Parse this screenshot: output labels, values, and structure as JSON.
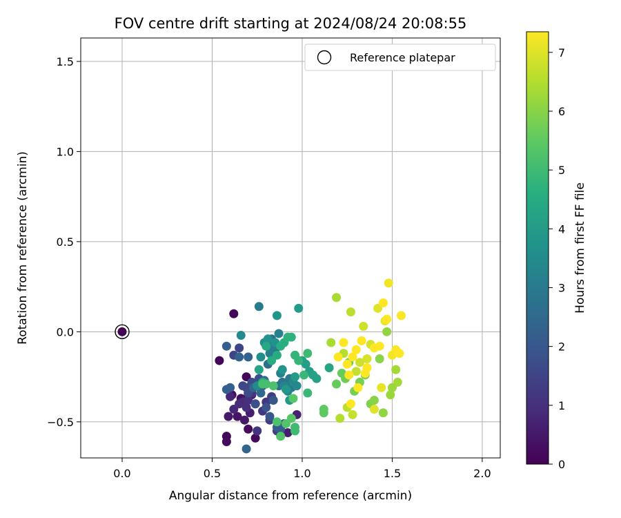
{
  "chart_data": {
    "type": "scatter",
    "title": "FOV centre drift starting at 2024/08/24 20:08:55",
    "xlabel": "Angular distance from reference (arcmin)",
    "ylabel": "Rotation from reference (arcmin)",
    "xlim": [
      -0.23,
      2.1
    ],
    "ylim": [
      -0.7,
      1.63
    ],
    "xticks": [
      0.0,
      0.5,
      1.0,
      1.5,
      2.0
    ],
    "xtick_labels": [
      "0.0",
      "0.5",
      "1.0",
      "1.5",
      "2.0"
    ],
    "yticks": [
      -0.5,
      0.0,
      0.5,
      1.0,
      1.5
    ],
    "ytick_labels": [
      "−0.5",
      "0.0",
      "0.5",
      "1.0",
      "1.5"
    ],
    "grid": true,
    "legend": {
      "placement": "top-right",
      "entries": [
        "Reference platepar"
      ]
    },
    "reference_point": {
      "x": 0.0,
      "y": 0.0,
      "value": 0.0
    },
    "colorbar": {
      "label": "Hours from first FF file",
      "colormap": "viridis",
      "range": [
        0,
        7.35
      ],
      "ticks": [
        0,
        1,
        2,
        3,
        4,
        5,
        6,
        7
      ],
      "tick_labels": [
        "0",
        "1",
        "2",
        "3",
        "4",
        "5",
        "6",
        "7"
      ]
    },
    "points": [
      [
        0.54,
        -0.16,
        0.1
      ],
      [
        0.62,
        0.1,
        0.1
      ],
      [
        0.69,
        -0.25,
        0.1
      ],
      [
        0.58,
        -0.58,
        0.1
      ],
      [
        0.58,
        -0.61,
        0.2
      ],
      [
        0.7,
        -0.54,
        0.2
      ],
      [
        0.74,
        -0.59,
        0.2
      ],
      [
        0.61,
        -0.35,
        0.3
      ],
      [
        0.66,
        -0.37,
        0.3
      ],
      [
        0.69,
        -0.37,
        0.4
      ],
      [
        0.64,
        -0.47,
        0.4
      ],
      [
        0.59,
        -0.47,
        0.5
      ],
      [
        0.68,
        -0.49,
        0.5
      ],
      [
        0.71,
        -0.45,
        0.6
      ],
      [
        0.72,
        -0.35,
        0.6
      ],
      [
        0.92,
        -0.56,
        0.6
      ],
      [
        0.97,
        -0.46,
        0.7
      ],
      [
        0.6,
        -0.36,
        0.8
      ],
      [
        0.62,
        -0.43,
        0.8
      ],
      [
        0.65,
        -0.4,
        0.9
      ],
      [
        0.67,
        -0.39,
        0.9
      ],
      [
        0.69,
        -0.42,
        1.0
      ],
      [
        0.7,
        -0.38,
        1.0
      ],
      [
        0.72,
        -0.34,
        1.1
      ],
      [
        0.74,
        -0.4,
        1.1
      ],
      [
        0.75,
        -0.55,
        1.1
      ],
      [
        0.78,
        -0.44,
        1.2
      ],
      [
        0.8,
        -0.39,
        1.2
      ],
      [
        0.82,
        -0.49,
        1.3
      ],
      [
        0.83,
        -0.36,
        1.3
      ],
      [
        0.86,
        -0.55,
        1.3
      ],
      [
        0.88,
        -0.57,
        1.4
      ],
      [
        0.9,
        -0.51,
        1.4
      ],
      [
        0.62,
        -0.13,
        1.5
      ],
      [
        0.65,
        -0.09,
        1.5
      ],
      [
        0.67,
        -0.3,
        1.6
      ],
      [
        0.69,
        -0.31,
        1.6
      ],
      [
        0.7,
        -0.34,
        1.7
      ],
      [
        0.72,
        -0.28,
        1.7
      ],
      [
        0.74,
        -0.4,
        1.8
      ],
      [
        0.76,
        -0.26,
        1.8
      ],
      [
        0.78,
        -0.3,
        1.9
      ],
      [
        0.8,
        -0.42,
        1.9
      ],
      [
        0.82,
        -0.47,
        2.0
      ],
      [
        0.84,
        -0.38,
        2.0
      ],
      [
        0.86,
        -0.53,
        2.1
      ],
      [
        0.88,
        -0.54,
        2.1
      ],
      [
        0.58,
        -0.08,
        2.2
      ],
      [
        0.58,
        -0.32,
        2.2
      ],
      [
        0.6,
        -0.31,
        2.2
      ],
      [
        0.65,
        -0.14,
        2.3
      ],
      [
        0.7,
        -0.14,
        2.3
      ],
      [
        0.69,
        -0.65,
        2.4
      ],
      [
        0.73,
        -0.31,
        2.4
      ],
      [
        0.77,
        -0.34,
        2.5
      ],
      [
        0.79,
        -0.27,
        2.5
      ],
      [
        0.81,
        -0.18,
        2.6
      ],
      [
        0.83,
        -0.04,
        2.6
      ],
      [
        0.85,
        -0.1,
        2.7
      ],
      [
        0.87,
        -0.3,
        2.7
      ],
      [
        0.89,
        -0.28,
        2.8
      ],
      [
        0.91,
        -0.3,
        2.8
      ],
      [
        0.93,
        -0.26,
        2.9
      ],
      [
        0.94,
        -0.31,
        2.9
      ],
      [
        0.76,
        0.14,
        3.0
      ],
      [
        0.8,
        -0.06,
        3.0
      ],
      [
        0.82,
        -0.12,
        3.1
      ],
      [
        0.84,
        -0.08,
        3.1
      ],
      [
        0.87,
        -0.01,
        3.2
      ],
      [
        0.88,
        -0.23,
        3.2
      ],
      [
        0.9,
        -0.3,
        3.3
      ],
      [
        0.92,
        -0.33,
        3.3
      ],
      [
        0.95,
        -0.28,
        3.4
      ],
      [
        0.97,
        -0.3,
        3.4
      ],
      [
        0.66,
        -0.02,
        3.5
      ],
      [
        0.75,
        -0.3,
        3.5
      ],
      [
        0.77,
        -0.14,
        3.6
      ],
      [
        0.79,
        -0.06,
        3.6
      ],
      [
        0.81,
        -0.04,
        3.7
      ],
      [
        0.85,
        -0.06,
        3.7
      ],
      [
        0.86,
        0.09,
        3.8
      ],
      [
        0.89,
        -0.21,
        3.8
      ],
      [
        0.91,
        -0.32,
        3.9
      ],
      [
        0.93,
        -0.38,
        3.9
      ],
      [
        0.96,
        -0.25,
        4.0
      ],
      [
        0.98,
        0.13,
        4.0
      ],
      [
        1.0,
        -0.16,
        4.1
      ],
      [
        1.02,
        -0.18,
        4.1
      ],
      [
        1.04,
        -0.22,
        4.1
      ],
      [
        1.06,
        -0.24,
        4.2
      ],
      [
        1.08,
        -0.26,
        4.2
      ],
      [
        1.15,
        -0.2,
        4.3
      ],
      [
        0.76,
        -0.21,
        4.3
      ],
      [
        0.78,
        -0.28,
        4.4
      ],
      [
        0.8,
        -0.08,
        4.4
      ],
      [
        0.83,
        -0.16,
        4.5
      ],
      [
        0.86,
        -0.13,
        4.5
      ],
      [
        0.88,
        -0.08,
        4.6
      ],
      [
        0.9,
        -0.06,
        4.6
      ],
      [
        0.92,
        -0.03,
        4.7
      ],
      [
        0.94,
        -0.03,
        4.7
      ],
      [
        0.96,
        -0.13,
        4.8
      ],
      [
        0.98,
        -0.16,
        4.8
      ],
      [
        1.01,
        -0.24,
        4.9
      ],
      [
        1.03,
        -0.34,
        4.9
      ],
      [
        1.03,
        -0.12,
        5.0
      ],
      [
        0.96,
        -0.53,
        5.0
      ],
      [
        0.96,
        -0.55,
        5.0
      ],
      [
        0.78,
        -0.29,
        5.1
      ],
      [
        0.8,
        -0.29,
        5.1
      ],
      [
        0.84,
        -0.3,
        5.2
      ],
      [
        0.86,
        -0.5,
        5.2
      ],
      [
        0.88,
        -0.58,
        5.3
      ],
      [
        0.91,
        -0.51,
        5.3
      ],
      [
        0.94,
        -0.48,
        5.4
      ],
      [
        0.95,
        -0.37,
        5.4
      ],
      [
        1.12,
        -0.43,
        5.5
      ],
      [
        1.12,
        -0.45,
        5.5
      ],
      [
        1.19,
        -0.29,
        5.6
      ],
      [
        1.22,
        -0.23,
        5.6
      ],
      [
        1.24,
        -0.26,
        5.7
      ],
      [
        1.26,
        -0.17,
        5.7
      ],
      [
        1.29,
        -0.33,
        5.8
      ],
      [
        1.32,
        -0.28,
        5.8
      ],
      [
        1.35,
        -0.24,
        5.9
      ],
      [
        1.38,
        -0.4,
        5.9
      ],
      [
        1.4,
        -0.38,
        6.0
      ],
      [
        1.43,
        -0.15,
        6.0
      ],
      [
        1.45,
        -0.45,
        6.1
      ],
      [
        1.47,
        0.0,
        6.1
      ],
      [
        1.49,
        -0.35,
        6.2
      ],
      [
        1.5,
        -0.31,
        6.2
      ],
      [
        1.52,
        -0.21,
        6.3
      ],
      [
        1.53,
        -0.28,
        6.3
      ],
      [
        1.16,
        -0.06,
        6.4
      ],
      [
        1.19,
        0.19,
        6.4
      ],
      [
        1.21,
        -0.48,
        6.5
      ],
      [
        1.23,
        -0.12,
        6.5
      ],
      [
        1.25,
        -0.42,
        6.6
      ],
      [
        1.27,
        0.11,
        6.6
      ],
      [
        1.28,
        -0.46,
        6.7
      ],
      [
        1.3,
        -0.22,
        6.7
      ],
      [
        1.32,
        -0.17,
        6.8
      ],
      [
        1.34,
        0.03,
        6.8
      ],
      [
        1.36,
        -0.15,
        6.9
      ],
      [
        1.38,
        -0.07,
        6.9
      ],
      [
        1.4,
        -0.43,
        7.0
      ],
      [
        1.42,
        0.13,
        7.0
      ],
      [
        1.44,
        -0.31,
        7.1
      ],
      [
        1.46,
        0.06,
        7.1
      ],
      [
        1.48,
        0.27,
        7.2
      ],
      [
        1.5,
        -0.13,
        7.2
      ],
      [
        1.52,
        -0.1,
        7.3
      ],
      [
        1.55,
        0.09,
        7.3
      ],
      [
        1.27,
        -0.4,
        7.35
      ],
      [
        1.3,
        -0.1,
        7.35
      ],
      [
        1.33,
        -0.05,
        7.35
      ],
      [
        1.36,
        -0.2,
        7.35
      ],
      [
        1.4,
        -0.09,
        7.35
      ],
      [
        1.43,
        -0.08,
        7.35
      ],
      [
        1.45,
        0.16,
        7.35
      ],
      [
        1.54,
        -0.12,
        7.35
      ],
      [
        1.47,
        0.07,
        7.35
      ],
      [
        1.26,
        -0.24,
        7.35
      ],
      [
        1.28,
        -0.14,
        7.35
      ],
      [
        1.31,
        -0.31,
        7.35
      ],
      [
        1.2,
        -0.14,
        7.35
      ],
      [
        1.23,
        -0.06,
        7.35
      ],
      [
        1.25,
        -0.18,
        7.35
      ],
      [
        1.35,
        -0.23,
        7.35
      ]
    ]
  }
}
